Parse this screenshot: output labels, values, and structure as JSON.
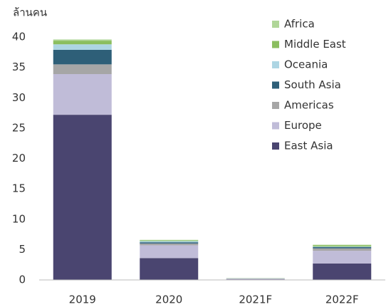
{
  "chart_data": {
    "type": "stacked_bar",
    "y_label": "ล้านคน",
    "categories": [
      "2019",
      "2020",
      "2021F",
      "2022F"
    ],
    "series": [
      {
        "name": "East Asia",
        "color": "#4a4570",
        "values": [
          27.2,
          3.6,
          0.1,
          2.7
        ]
      },
      {
        "name": "Europe",
        "color": "#c0bcd8",
        "values": [
          6.7,
          2.1,
          0.1,
          2.1
        ]
      },
      {
        "name": "Americas",
        "color": "#a6a6a6",
        "values": [
          1.6,
          0.3,
          0.03,
          0.4
        ]
      },
      {
        "name": "South Asia",
        "color": "#2e5f78",
        "values": [
          2.4,
          0.2,
          0.02,
          0.2
        ]
      },
      {
        "name": "Oceania",
        "color": "#add5e3",
        "values": [
          0.9,
          0.2,
          0.02,
          0.1
        ]
      },
      {
        "name": "Middle East",
        "color": "#8bbe5f",
        "values": [
          0.6,
          0.1,
          0.02,
          0.2
        ]
      },
      {
        "name": "Africa",
        "color": "#b0d698",
        "values": [
          0.2,
          0.1,
          0.01,
          0.1
        ]
      }
    ],
    "ylim": [
      0,
      40
    ],
    "yticks": [
      0,
      5,
      10,
      15,
      20,
      25,
      30,
      35,
      40
    ],
    "grid": false,
    "legend": "upper right"
  }
}
